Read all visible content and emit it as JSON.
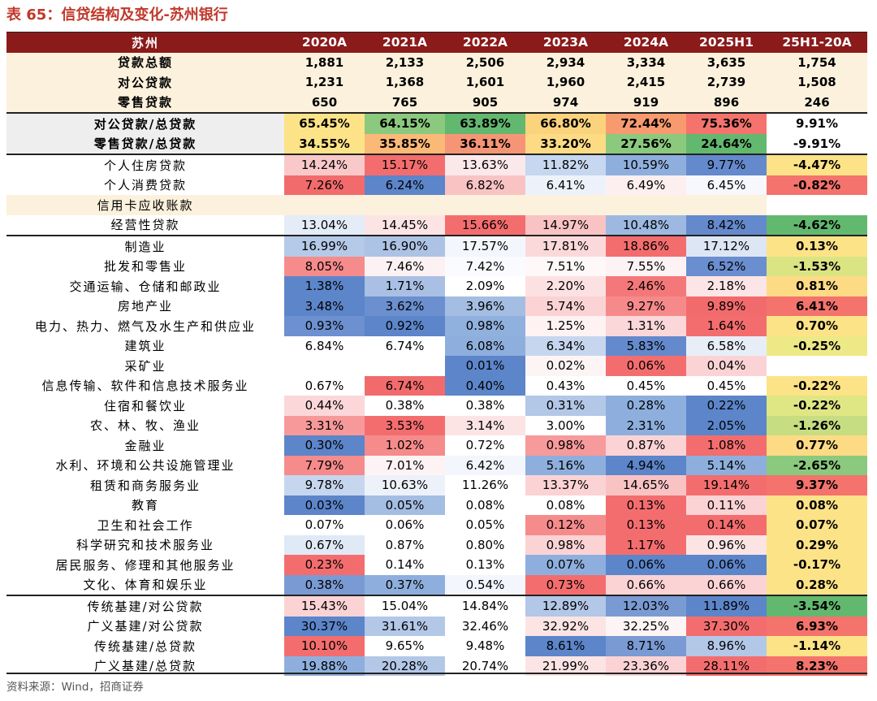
{
  "caption": "表 65：信贷结构及变化-苏州银行",
  "source": "资料来源：Wind，招商证券",
  "headers": [
    "苏州",
    "2020A",
    "2021A",
    "2022A",
    "2023A",
    "2024A",
    "2025H1",
    "25H1-20A"
  ],
  "rows": [
    {
      "label": "贷款总额",
      "cells": [
        "1,881",
        "2,133",
        "2,506",
        "2,934",
        "3,334",
        "3,635",
        "1,754"
      ],
      "style": "beige",
      "bold": true,
      "colors": [
        "",
        "",
        "",
        "",
        "",
        "",
        ""
      ]
    },
    {
      "label": "对公贷款",
      "cells": [
        "1,231",
        "1,368",
        "1,601",
        "1,960",
        "2,415",
        "2,739",
        "1,508"
      ],
      "style": "beige",
      "bold": true,
      "colors": [
        "",
        "",
        "",
        "",
        "",
        "",
        ""
      ]
    },
    {
      "label": "零售贷款",
      "cells": [
        "650",
        "765",
        "905",
        "974",
        "919",
        "896",
        "246"
      ],
      "style": "beige",
      "bold": true,
      "sep": true,
      "colors": [
        "",
        "",
        "",
        "",
        "",
        "",
        ""
      ]
    },
    {
      "label": "对公贷款/总贷款",
      "cells": [
        "65.45%",
        "64.15%",
        "63.89%",
        "66.80%",
        "72.44%",
        "75.36%",
        "9.91%"
      ],
      "style": "grey",
      "bold": true,
      "colors": [
        "#fde387",
        "#8bc97e",
        "#63b86f",
        "#fbd37d",
        "#f89a6f",
        "#f4736c",
        "#ffffff"
      ]
    },
    {
      "label": "零售贷款/总贷款",
      "cells": [
        "34.55%",
        "35.85%",
        "36.11%",
        "33.20%",
        "27.56%",
        "24.64%",
        "-9.91%"
      ],
      "style": "grey",
      "bold": true,
      "sep": true,
      "colors": [
        "#fde387",
        "#fbb978",
        "#f69575",
        "#fddb84",
        "#8bc97e",
        "#63b86f",
        "#ffffff"
      ]
    },
    {
      "label": "个人住房贷款",
      "cells": [
        "14.24%",
        "15.17%",
        "13.63%",
        "11.82%",
        "10.59%",
        "9.77%",
        "-4.47%"
      ],
      "colors": [
        "#f9c8c9",
        "#f46d6e",
        "#fbe8ea",
        "#c7d7ef",
        "#8eafdd",
        "#6489cc",
        "#fde387"
      ]
    },
    {
      "label": "个人消费贷款",
      "cells": [
        "7.26%",
        "6.24%",
        "6.82%",
        "6.41%",
        "6.49%",
        "6.45%",
        "-0.82%"
      ],
      "colors": [
        "#f26b6c",
        "#5c85ca",
        "#f9c3c4",
        "#edf2fa",
        "#fdeff0",
        "#f6f8fd",
        "#f4736c"
      ]
    },
    {
      "label": "信用卡应收账款",
      "cells": [
        "",
        "",
        "",
        "",
        "",
        "",
        ""
      ],
      "style": "beige",
      "colors": [
        "",
        "",
        "",
        "",
        "",
        "",
        "#ffffff"
      ]
    },
    {
      "label": "经营性贷款",
      "cells": [
        "13.04%",
        "14.45%",
        "15.66%",
        "14.97%",
        "10.48%",
        "8.42%",
        "-4.62%"
      ],
      "sep": true,
      "colors": [
        "#e4ecf7",
        "#fce4e5",
        "#f46d6e",
        "#f9c3c4",
        "#9db9e1",
        "#6489cc",
        "#63b86f"
      ]
    },
    {
      "label": "制造业",
      "cells": [
        "16.99%",
        "16.90%",
        "17.57%",
        "17.81%",
        "18.86%",
        "17.12%",
        "0.13%"
      ],
      "colors": [
        "#b5c9e8",
        "#adc3e5",
        "#f3f6fc",
        "#fbd9db",
        "#f46d6e",
        "#dce6f5",
        "#fde387"
      ]
    },
    {
      "label": "批发和零售业",
      "cells": [
        "8.05%",
        "7.46%",
        "7.42%",
        "7.51%",
        "7.55%",
        "6.52%",
        "-1.53%"
      ],
      "colors": [
        "#f68b8c",
        "#fdf2f3",
        "#f9fbfe",
        "#fef8f8",
        "#fef3f4",
        "#6a8ecf",
        "#dbe483"
      ]
    },
    {
      "label": "交通运输、仓储和邮政业",
      "cells": [
        "1.38%",
        "1.71%",
        "2.09%",
        "2.20%",
        "2.46%",
        "2.18%",
        "0.81%"
      ],
      "colors": [
        "#5c85ca",
        "#a9c0e4",
        "#ffffff",
        "#fce1e2",
        "#f4787a",
        "#fce5e6",
        "#fddb84"
      ]
    },
    {
      "label": "房地产业",
      "cells": [
        "3.48%",
        "3.62%",
        "3.96%",
        "5.74%",
        "9.27%",
        "9.89%",
        "6.41%"
      ],
      "colors": [
        "#5c85ca",
        "#6b8fcf",
        "#a4bde2",
        "#fbd3d5",
        "#f68a8b",
        "#f26b6c",
        "#f4736c"
      ]
    },
    {
      "label": "电力、热力、燃气及水生产和供应业",
      "cells": [
        "0.93%",
        "0.92%",
        "0.98%",
        "1.25%",
        "1.31%",
        "1.64%",
        "0.70%"
      ],
      "colors": [
        "#6c90d0",
        "#5c85ca",
        "#90b0dd",
        "#fef2f3",
        "#fbd7d9",
        "#f46d6e",
        "#fde387"
      ]
    },
    {
      "label": "建筑业",
      "cells": [
        "6.84%",
        "6.74%",
        "6.08%",
        "6.34%",
        "5.83%",
        "6.58%",
        "-0.25%"
      ],
      "colors": [
        "#ffffff",
        "#ffffff",
        "#8eafdd",
        "#c6d6ef",
        "#6489cc",
        "#e8eef8",
        "#eee987"
      ]
    },
    {
      "label": "采矿业",
      "cells": [
        "",
        "",
        "0.01%",
        "0.02%",
        "0.06%",
        "0.04%",
        ""
      ],
      "colors": [
        "#ffffff",
        "#ffffff",
        "#5c85ca",
        "#fdf4f5",
        "#f46d6e",
        "#fbd3d5",
        "#ffffff"
      ]
    },
    {
      "label": "信息传输、软件和信息技术服务业",
      "cells": [
        "0.67%",
        "6.74%",
        "0.40%",
        "0.43%",
        "0.45%",
        "0.45%",
        "-0.22%"
      ],
      "colors": [
        "#ffffff",
        "#f26b6c",
        "#5c85ca",
        "#ffffff",
        "#ffffff",
        "#ffffff",
        "#fde387"
      ]
    },
    {
      "label": "住宿和餐饮业",
      "cells": [
        "0.44%",
        "0.38%",
        "0.38%",
        "0.31%",
        "0.28%",
        "0.22%",
        "-0.22%"
      ],
      "colors": [
        "#fbd7d9",
        "#ffffff",
        "#ffffff",
        "#b3c7e7",
        "#8eafdd",
        "#5c85ca",
        "#dfe684"
      ]
    },
    {
      "label": "农、林、牧、渔业",
      "cells": [
        "3.31%",
        "3.53%",
        "3.14%",
        "3.00%",
        "2.31%",
        "2.05%",
        "-1.26%"
      ],
      "colors": [
        "#f7999a",
        "#f46d6e",
        "#fce4e5",
        "#ffffff",
        "#8eafdd",
        "#5c85ca",
        "#c7dd82"
      ]
    },
    {
      "label": "金融业",
      "cells": [
        "0.30%",
        "1.02%",
        "0.72%",
        "0.98%",
        "0.87%",
        "1.08%",
        "0.77%"
      ],
      "colors": [
        "#5c85ca",
        "#f68b8c",
        "#ffffff",
        "#f79a9b",
        "#fbd3d5",
        "#f46d6e",
        "#fddb84"
      ]
    },
    {
      "label": "水利、环境和公共设施管理业",
      "cells": [
        "7.79%",
        "7.01%",
        "6.42%",
        "5.16%",
        "4.94%",
        "5.14%",
        "-2.65%"
      ],
      "colors": [
        "#f68b8c",
        "#fef3f4",
        "#f3f6fc",
        "#8eafdd",
        "#5c85ca",
        "#8eafdd",
        "#8bc97e"
      ]
    },
    {
      "label": "租赁和商务服务业",
      "cells": [
        "9.78%",
        "10.63%",
        "11.26%",
        "13.37%",
        "14.65%",
        "19.14%",
        "9.37%"
      ],
      "colors": [
        "#c6d6ef",
        "#edf2fa",
        "#ffffff",
        "#fbd3d5",
        "#f9c3c4",
        "#f46d6e",
        "#f4736c"
      ]
    },
    {
      "label": "教育",
      "cells": [
        "0.03%",
        "0.05%",
        "0.08%",
        "0.08%",
        "0.13%",
        "0.11%",
        "0.08%"
      ],
      "colors": [
        "#5c85ca",
        "#a4bde2",
        "#ffffff",
        "#ffffff",
        "#f46d6e",
        "#fbd3d5",
        "#fde387"
      ]
    },
    {
      "label": "卫生和社会工作",
      "cells": [
        "0.07%",
        "0.06%",
        "0.05%",
        "0.12%",
        "0.13%",
        "0.14%",
        "0.07%"
      ],
      "colors": [
        "#ffffff",
        "#ffffff",
        "#ffffff",
        "#f68b8c",
        "#f46d6e",
        "#f46d6e",
        "#fde387"
      ]
    },
    {
      "label": "科学研究和技术服务业",
      "cells": [
        "0.67%",
        "0.87%",
        "0.80%",
        "0.98%",
        "1.17%",
        "0.96%",
        "0.29%"
      ],
      "colors": [
        "#e0e9f6",
        "#ffffff",
        "#ffffff",
        "#fbd3d5",
        "#f46d6e",
        "#fce4e5",
        "#fde387"
      ]
    },
    {
      "label": "居民服务、修理和其他服务业",
      "cells": [
        "0.23%",
        "0.14%",
        "0.13%",
        "0.07%",
        "0.06%",
        "0.06%",
        "-0.17%"
      ],
      "colors": [
        "#f46d6e",
        "#ffffff",
        "#ffffff",
        "#8eafdd",
        "#5c85ca",
        "#5c85ca",
        "#fde387"
      ]
    },
    {
      "label": "文化、体育和娱乐业",
      "cells": [
        "0.38%",
        "0.37%",
        "0.54%",
        "0.73%",
        "0.66%",
        "0.66%",
        "0.28%"
      ],
      "colors": [
        "#7a9ad3",
        "#8eafdd",
        "#f3f6fc",
        "#f46d6e",
        "#fbd3d5",
        "#fbd3d5",
        "#fde387"
      ],
      "sep": true
    },
    {
      "label": "传统基建/对公贷款",
      "cells": [
        "15.43%",
        "15.04%",
        "14.84%",
        "12.89%",
        "12.03%",
        "11.89%",
        "-3.54%"
      ],
      "colors": [
        "#fbd3d5",
        "#ffffff",
        "#ffffff",
        "#b3c7e7",
        "#7a9ad3",
        "#5c85ca",
        "#63b86f"
      ]
    },
    {
      "label": "广义基建/对公贷款",
      "cells": [
        "30.37%",
        "31.61%",
        "32.46%",
        "32.92%",
        "32.25%",
        "37.30%",
        "6.93%"
      ],
      "colors": [
        "#5c85ca",
        "#b3c7e7",
        "#ffffff",
        "#fce4e5",
        "#fdf4f5",
        "#f46d6e",
        "#f4736c"
      ]
    },
    {
      "label": "传统基建/总贷款",
      "cells": [
        "10.10%",
        "9.65%",
        "9.48%",
        "8.61%",
        "8.71%",
        "8.96%",
        "-1.14%"
      ],
      "colors": [
        "#f46d6e",
        "#ffffff",
        "#ffffff",
        "#5c85ca",
        "#7a9ad3",
        "#b3c7e7",
        "#fde387"
      ]
    },
    {
      "label": "广义基建/总贷款",
      "cells": [
        "19.88%",
        "20.28%",
        "20.74%",
        "21.99%",
        "23.36%",
        "28.11%",
        "8.23%"
      ],
      "colors": [
        "#8eafdd",
        "#b3c7e7",
        "#ffffff",
        "#fce4e5",
        "#fbd3d5",
        "#f46d6e",
        "#f4736c"
      ]
    }
  ]
}
